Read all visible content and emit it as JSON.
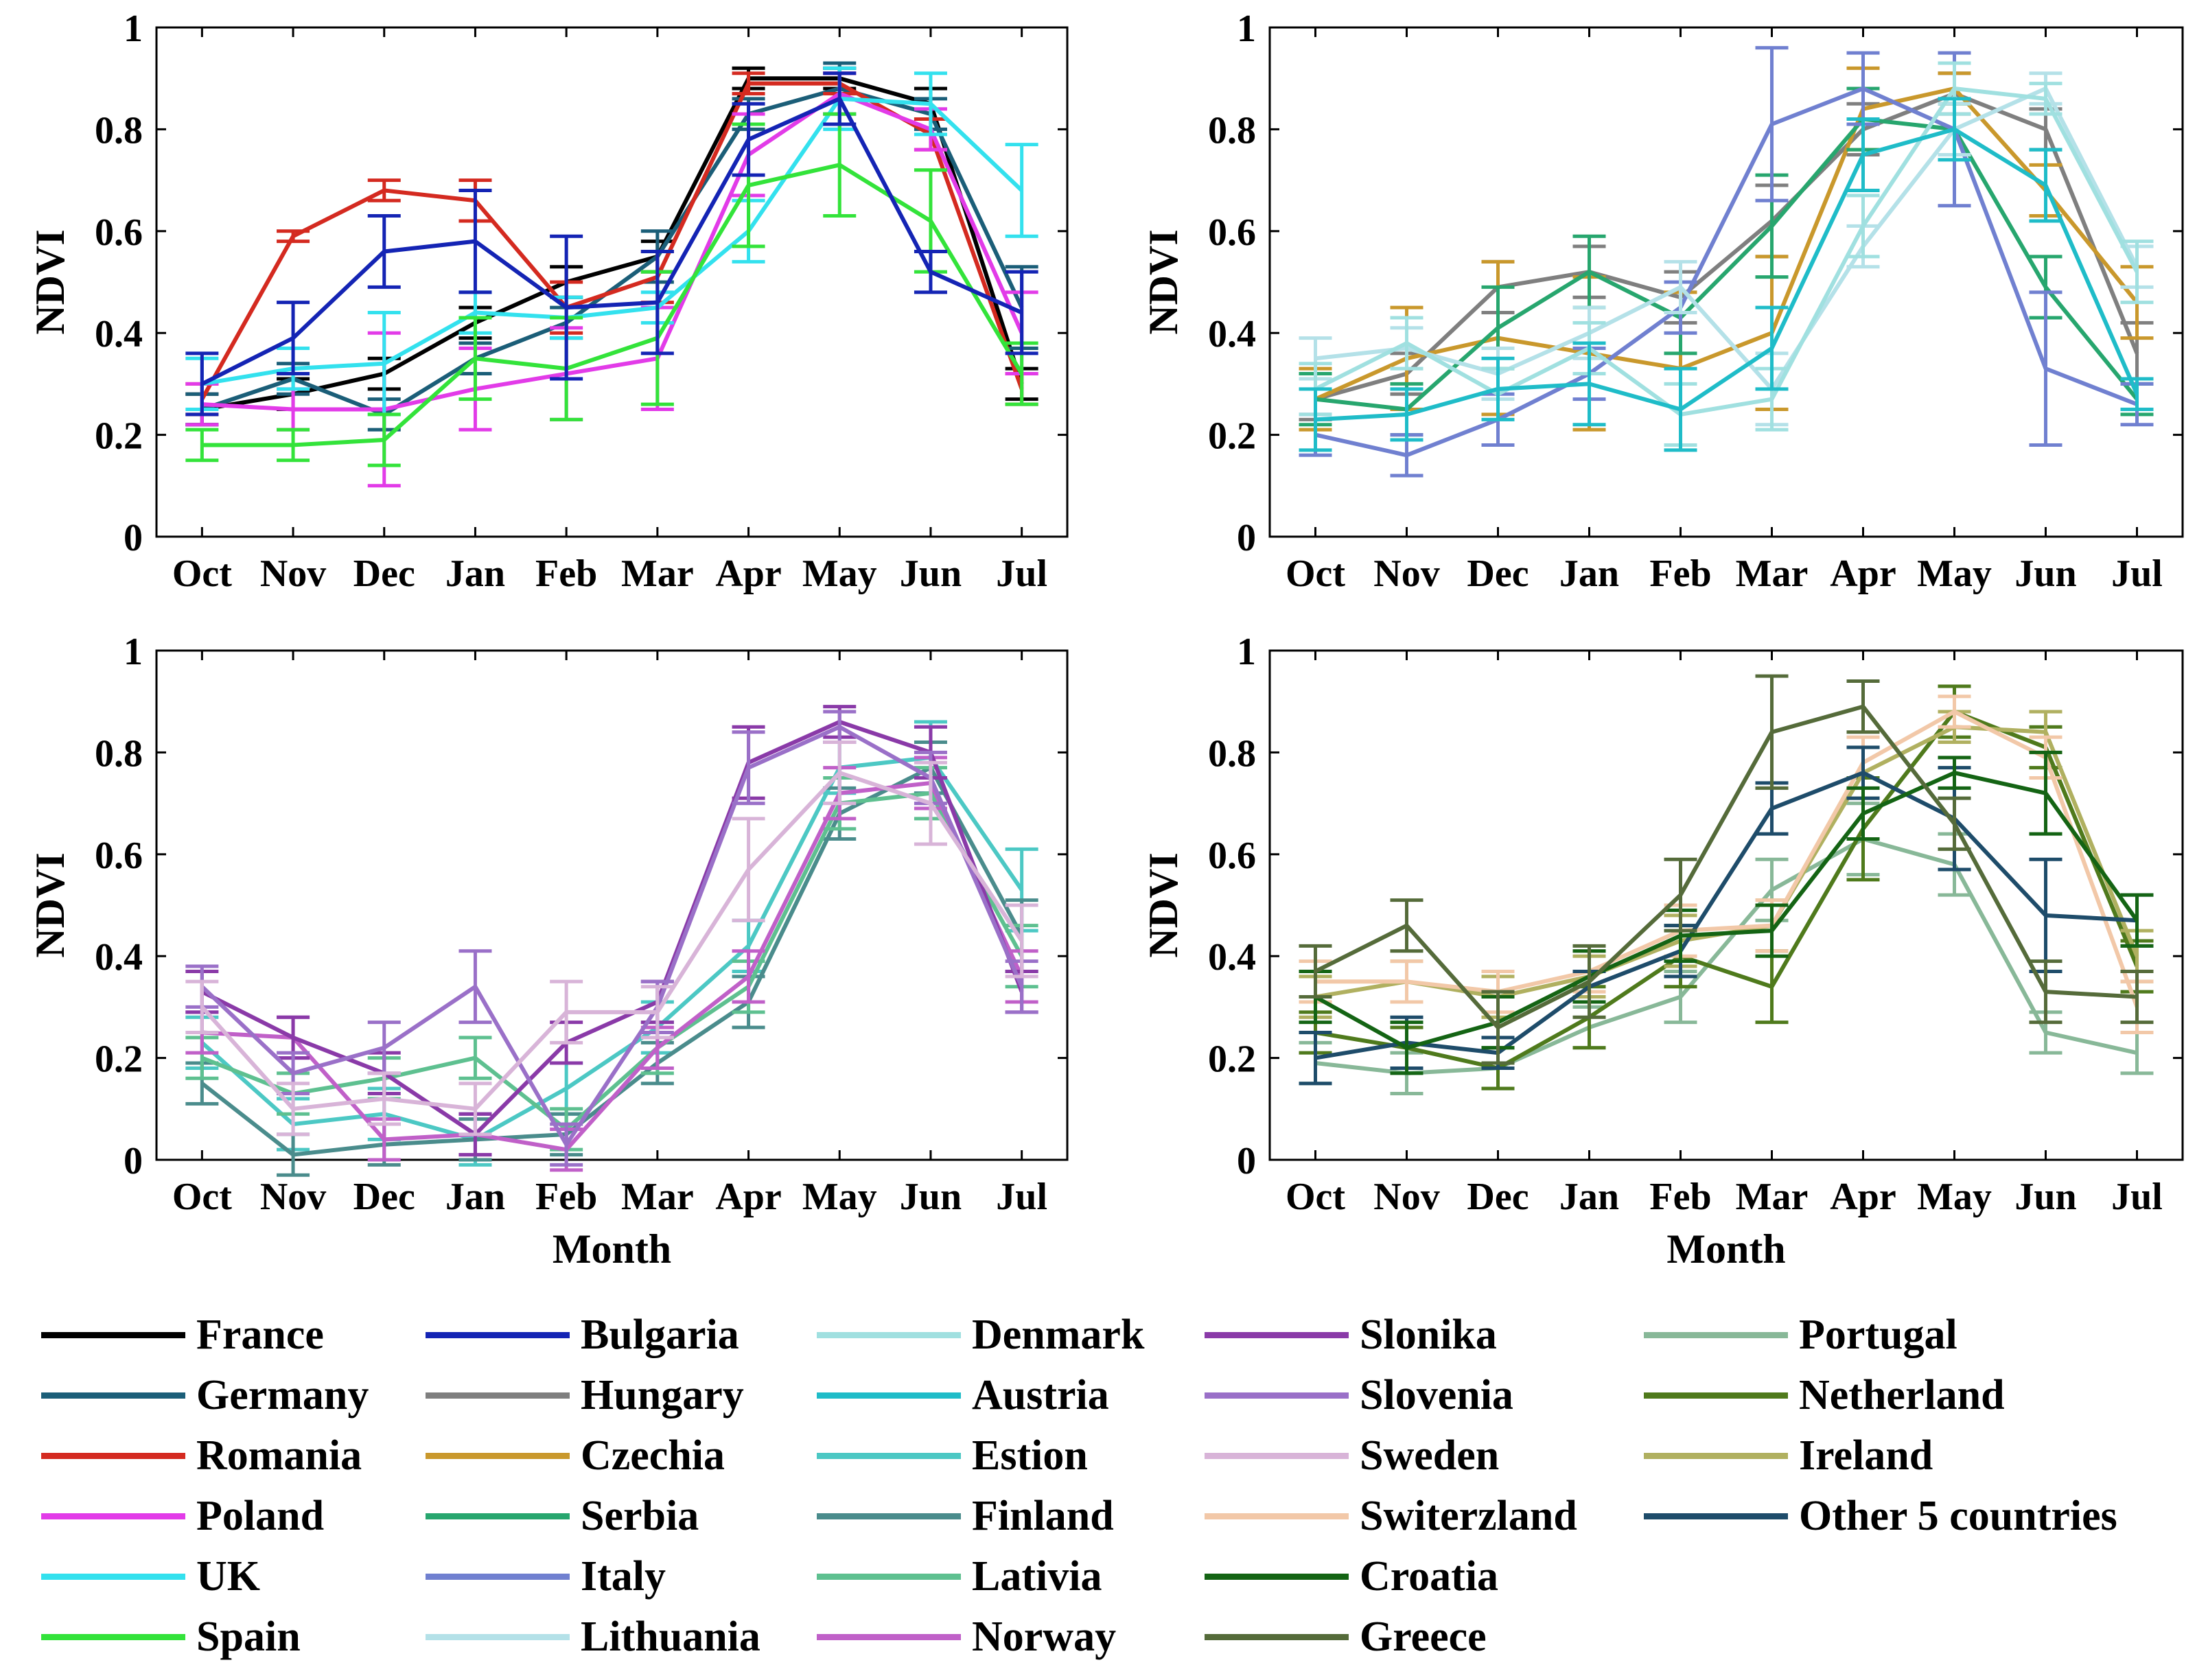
{
  "chart_data": [
    {
      "type": "line",
      "panel": "top-left",
      "categories": [
        "Oct",
        "Nov",
        "Dec",
        "Jan",
        "Feb",
        "Mar",
        "Apr",
        "May",
        "Jun",
        "Jul"
      ],
      "ylabel": "NDVI",
      "xlabel": "",
      "ylim": [
        0,
        1
      ],
      "yticks": [
        "0",
        "0.2",
        "0.4",
        "0.6",
        "0.8",
        "1"
      ],
      "error_bars": true,
      "series": [
        {
          "name": "France",
          "color": "#000000",
          "values": [
            0.25,
            0.28,
            0.32,
            0.42,
            0.5,
            0.55,
            0.9,
            0.9,
            0.85,
            0.3
          ],
          "err": [
            0.03,
            0.03,
            0.03,
            0.03,
            0.03,
            0.03,
            0.02,
            0.02,
            0.03,
            0.03
          ]
        },
        {
          "name": "Germany",
          "color": "#1b5e78",
          "values": [
            0.25,
            0.31,
            0.24,
            0.35,
            0.42,
            0.55,
            0.83,
            0.88,
            0.83,
            0.45
          ],
          "err": [
            0.03,
            0.03,
            0.03,
            0.03,
            0.03,
            0.05,
            0.03,
            0.05,
            0.03,
            0.08
          ]
        },
        {
          "name": "Romania",
          "color": "#d42a20",
          "values": [
            0.27,
            0.59,
            0.68,
            0.66,
            0.45,
            0.51,
            0.89,
            0.89,
            0.79,
            0.29
          ],
          "err": [
            0.03,
            0.01,
            0.02,
            0.04,
            0.05,
            0.05,
            0.02,
            0.02,
            0.03,
            0.03
          ]
        },
        {
          "name": "Poland",
          "color": "#e23be8",
          "values": [
            0.26,
            0.25,
            0.25,
            0.29,
            0.32,
            0.35,
            0.75,
            0.87,
            0.8,
            0.4
          ],
          "err": [
            0.04,
            0.04,
            0.15,
            0.08,
            0.09,
            0.1,
            0.08,
            0.04,
            0.04,
            0.08
          ]
        },
        {
          "name": "UK",
          "color": "#33e1ee",
          "values": [
            0.3,
            0.33,
            0.34,
            0.44,
            0.43,
            0.45,
            0.6,
            0.86,
            0.85,
            0.68
          ],
          "err": [
            0.05,
            0.04,
            0.1,
            0.04,
            0.04,
            0.03,
            0.06,
            0.06,
            0.06,
            0.09
          ]
        },
        {
          "name": "Spain",
          "color": "#33e33a",
          "values": [
            0.18,
            0.18,
            0.19,
            0.35,
            0.33,
            0.39,
            0.69,
            0.73,
            0.62,
            0.32
          ],
          "err": [
            0.03,
            0.03,
            0.05,
            0.08,
            0.1,
            0.13,
            0.12,
            0.1,
            0.1,
            0.06
          ]
        },
        {
          "name": "Bulgaria",
          "color": "#1424b4",
          "values": [
            0.3,
            0.39,
            0.56,
            0.58,
            0.45,
            0.46,
            0.78,
            0.86,
            0.52,
            0.44
          ],
          "err": [
            0.06,
            0.07,
            0.07,
            0.1,
            0.14,
            0.1,
            0.07,
            0.05,
            0.04,
            0.08
          ]
        }
      ]
    },
    {
      "type": "line",
      "panel": "top-right",
      "categories": [
        "Oct",
        "Nov",
        "Dec",
        "Jan",
        "Feb",
        "Mar",
        "Apr",
        "May",
        "Jun",
        "Jul"
      ],
      "ylabel": "NDVI",
      "xlabel": "",
      "ylim": [
        0,
        1
      ],
      "yticks": [
        "0",
        "0.2",
        "0.4",
        "0.6",
        "0.8",
        "1"
      ],
      "error_bars": true,
      "series": [
        {
          "name": "Hungary",
          "color": "#7f7f7f",
          "values": [
            0.27,
            0.32,
            0.49,
            0.52,
            0.47,
            0.62,
            0.8,
            0.87,
            0.8,
            0.36
          ],
          "err": [
            0.04,
            0.04,
            0.05,
            0.05,
            0.05,
            0.07,
            0.05,
            0.04,
            0.04,
            0.06
          ]
        },
        {
          "name": "Czechia",
          "color": "#c9982c",
          "values": [
            0.27,
            0.35,
            0.39,
            0.36,
            0.33,
            0.4,
            0.84,
            0.88,
            0.68,
            0.46
          ],
          "err": [
            0.06,
            0.1,
            0.15,
            0.15,
            0.15,
            0.15,
            0.08,
            0.03,
            0.05,
            0.07
          ]
        },
        {
          "name": "Serbia",
          "color": "#27a66e",
          "values": [
            0.27,
            0.25,
            0.41,
            0.52,
            0.43,
            0.61,
            0.82,
            0.8,
            0.49,
            0.27
          ],
          "err": [
            0.05,
            0.05,
            0.08,
            0.07,
            0.07,
            0.1,
            0.06,
            0.05,
            0.06,
            0.03
          ]
        },
        {
          "name": "Italy",
          "color": "#7080d0",
          "values": [
            0.2,
            0.16,
            0.23,
            0.32,
            0.45,
            0.81,
            0.88,
            0.8,
            0.33,
            0.26
          ],
          "err": [
            0.04,
            0.04,
            0.05,
            0.05,
            0.05,
            0.15,
            0.07,
            0.15,
            0.15,
            0.04
          ]
        },
        {
          "name": "Lithuania",
          "color": "#b4e1e8",
          "values": [
            0.35,
            0.37,
            0.32,
            0.4,
            0.49,
            0.29,
            0.57,
            0.8,
            0.88,
            0.53
          ],
          "err": [
            0.04,
            0.04,
            0.05,
            0.05,
            0.05,
            0.07,
            0.04,
            0.05,
            0.03,
            0.04
          ]
        },
        {
          "name": "Denmark",
          "color": "#a0e0e0",
          "values": [
            0.29,
            0.38,
            0.28,
            0.37,
            0.24,
            0.27,
            0.61,
            0.88,
            0.86,
            0.52
          ],
          "err": [
            0.05,
            0.05,
            0.05,
            0.05,
            0.06,
            0.06,
            0.06,
            0.05,
            0.03,
            0.06
          ]
        },
        {
          "name": "Austria",
          "color": "#1fbcc8",
          "values": [
            0.23,
            0.24,
            0.29,
            0.3,
            0.25,
            0.37,
            0.75,
            0.8,
            0.69,
            0.28
          ],
          "err": [
            0.06,
            0.05,
            0.06,
            0.08,
            0.08,
            0.08,
            0.07,
            0.06,
            0.07,
            0.03
          ]
        }
      ]
    },
    {
      "type": "line",
      "panel": "bottom-left",
      "categories": [
        "Oct",
        "Nov",
        "Dec",
        "Jan",
        "Feb",
        "Mar",
        "Apr",
        "May",
        "Jun",
        "Jul"
      ],
      "ylabel": "NDVI",
      "xlabel": "Month",
      "ylim": [
        0,
        1
      ],
      "yticks": [
        "0",
        "0.2",
        "0.4",
        "0.6",
        "0.8",
        "1"
      ],
      "error_bars": true,
      "series": [
        {
          "name": "Estion",
          "color": "#4cc8c4",
          "values": [
            0.23,
            0.07,
            0.09,
            0.04,
            0.14,
            0.26,
            0.42,
            0.77,
            0.79,
            0.53
          ],
          "err": [
            0.05,
            0.05,
            0.05,
            0.05,
            0.05,
            0.05,
            0.05,
            0.05,
            0.07,
            0.08
          ]
        },
        {
          "name": "Finland",
          "color": "#4a8c8c",
          "values": [
            0.15,
            0.01,
            0.03,
            0.04,
            0.05,
            0.19,
            0.31,
            0.68,
            0.77,
            0.44
          ],
          "err": [
            0.04,
            0.04,
            0.04,
            0.04,
            0.04,
            0.04,
            0.05,
            0.05,
            0.05,
            0.07
          ]
        },
        {
          "name": "Lativia",
          "color": "#5ec090",
          "values": [
            0.2,
            0.13,
            0.16,
            0.2,
            0.06,
            0.22,
            0.34,
            0.7,
            0.72,
            0.4
          ],
          "err": [
            0.04,
            0.04,
            0.04,
            0.04,
            0.04,
            0.05,
            0.05,
            0.05,
            0.05,
            0.06
          ]
        },
        {
          "name": "Norway",
          "color": "#c060c8",
          "values": [
            0.25,
            0.24,
            0.04,
            0.05,
            0.02,
            0.22,
            0.36,
            0.72,
            0.74,
            0.36
          ],
          "err": [
            0.04,
            0.04,
            0.04,
            0.04,
            0.04,
            0.04,
            0.05,
            0.05,
            0.05,
            0.05
          ]
        },
        {
          "name": "Slonika",
          "color": "#8a3aa8",
          "values": [
            0.33,
            0.24,
            0.17,
            0.05,
            0.23,
            0.31,
            0.78,
            0.86,
            0.8,
            0.33
          ],
          "err": [
            0.04,
            0.04,
            0.04,
            0.04,
            0.04,
            0.04,
            0.07,
            0.03,
            0.05,
            0.04
          ]
        },
        {
          "name": "Slovenia",
          "color": "#9a70c8",
          "values": [
            0.34,
            0.17,
            0.22,
            0.34,
            0.03,
            0.3,
            0.77,
            0.85,
            0.75,
            0.34
          ],
          "err": [
            0.04,
            0.04,
            0.05,
            0.07,
            0.04,
            0.05,
            0.07,
            0.03,
            0.05,
            0.05
          ]
        },
        {
          "name": "Sweden",
          "color": "#d8b4d8",
          "values": [
            0.3,
            0.1,
            0.12,
            0.1,
            0.29,
            0.29,
            0.57,
            0.76,
            0.7,
            0.43
          ],
          "err": [
            0.05,
            0.05,
            0.05,
            0.05,
            0.06,
            0.05,
            0.1,
            0.06,
            0.08,
            0.07
          ]
        }
      ]
    },
    {
      "type": "line",
      "panel": "bottom-right",
      "categories": [
        "Oct",
        "Nov",
        "Dec",
        "Jan",
        "Feb",
        "Mar",
        "Apr",
        "May",
        "Jun",
        "Jul"
      ],
      "ylabel": "NDVI",
      "xlabel": "Month",
      "ylim": [
        0,
        1
      ],
      "yticks": [
        "0",
        "0.2",
        "0.4",
        "0.6",
        "0.8",
        "1"
      ],
      "error_bars": true,
      "series": [
        {
          "name": "Portugal",
          "color": "#88b898",
          "values": [
            0.19,
            0.17,
            0.18,
            0.26,
            0.32,
            0.53,
            0.63,
            0.58,
            0.25,
            0.21
          ],
          "err": [
            0.04,
            0.04,
            0.04,
            0.04,
            0.05,
            0.06,
            0.07,
            0.06,
            0.04,
            0.04
          ]
        },
        {
          "name": "Netherland",
          "color": "#4f7a1c",
          "values": [
            0.25,
            0.22,
            0.18,
            0.28,
            0.4,
            0.34,
            0.65,
            0.88,
            0.81,
            0.38
          ],
          "err": [
            0.04,
            0.04,
            0.04,
            0.06,
            0.06,
            0.07,
            0.1,
            0.05,
            0.04,
            0.05
          ]
        },
        {
          "name": "Ireland",
          "color": "#b0b060",
          "values": [
            0.32,
            0.35,
            0.32,
            0.36,
            0.43,
            0.46,
            0.76,
            0.85,
            0.84,
            0.4
          ],
          "err": [
            0.04,
            0.04,
            0.04,
            0.04,
            0.05,
            0.05,
            0.05,
            0.03,
            0.04,
            0.05
          ]
        },
        {
          "name": "Switerzland",
          "color": "#f2c8a8",
          "values": [
            0.35,
            0.35,
            0.33,
            0.37,
            0.45,
            0.46,
            0.78,
            0.88,
            0.79,
            0.3
          ],
          "err": [
            0.04,
            0.04,
            0.04,
            0.04,
            0.05,
            0.05,
            0.05,
            0.03,
            0.04,
            0.05
          ]
        },
        {
          "name": "Other 5 countries",
          "color": "#1e4c6a",
          "values": [
            0.2,
            0.23,
            0.21,
            0.34,
            0.41,
            0.69,
            0.76,
            0.67,
            0.48,
            0.47
          ],
          "err": [
            0.05,
            0.05,
            0.03,
            0.03,
            0.05,
            0.05,
            0.05,
            0.1,
            0.11,
            0.05
          ]
        },
        {
          "name": "Croatia",
          "color": "#146414",
          "values": [
            0.32,
            0.22,
            0.27,
            0.36,
            0.44,
            0.45,
            0.68,
            0.76,
            0.72,
            0.47
          ],
          "err": [
            0.05,
            0.05,
            0.05,
            0.05,
            0.05,
            0.05,
            0.05,
            0.03,
            0.08,
            0.05
          ]
        },
        {
          "name": "Greece",
          "color": "#556b3a",
          "values": [
            0.37,
            0.46,
            0.26,
            0.35,
            0.52,
            0.84,
            0.89,
            0.66,
            0.33,
            0.32
          ],
          "err": [
            0.05,
            0.05,
            0.07,
            0.07,
            0.07,
            0.11,
            0.05,
            0.05,
            0.06,
            0.05
          ]
        }
      ]
    }
  ],
  "legend": {
    "columns": [
      [
        {
          "name": "France",
          "color": "#000000"
        },
        {
          "name": "Germany",
          "color": "#1b5e78"
        },
        {
          "name": "Romania",
          "color": "#d42a20"
        },
        {
          "name": "Poland",
          "color": "#e23be8"
        },
        {
          "name": "UK",
          "color": "#33e1ee"
        },
        {
          "name": "Spain",
          "color": "#33e33a"
        }
      ],
      [
        {
          "name": "Bulgaria",
          "color": "#1424b4"
        },
        {
          "name": "Hungary",
          "color": "#7f7f7f"
        },
        {
          "name": "Czechia",
          "color": "#c9982c"
        },
        {
          "name": "Serbia",
          "color": "#27a66e"
        },
        {
          "name": "Italy",
          "color": "#7080d0"
        },
        {
          "name": "Lithuania",
          "color": "#b4e1e8"
        }
      ],
      [
        {
          "name": "Denmark",
          "color": "#a0e0e0"
        },
        {
          "name": "Austria",
          "color": "#1fbcc8"
        },
        {
          "name": "Estion",
          "color": "#4cc8c4"
        },
        {
          "name": "Finland",
          "color": "#4a8c8c"
        },
        {
          "name": "Lativia",
          "color": "#5ec090"
        },
        {
          "name": "Norway",
          "color": "#c060c8"
        }
      ],
      [
        {
          "name": "Slonika",
          "color": "#8a3aa8"
        },
        {
          "name": "Slovenia",
          "color": "#9a70c8"
        },
        {
          "name": "Sweden",
          "color": "#d8b4d8"
        },
        {
          "name": "Switerzland",
          "color": "#f2c8a8"
        },
        {
          "name": "Croatia",
          "color": "#146414"
        },
        {
          "name": "Greece",
          "color": "#556b3a"
        }
      ],
      [
        {
          "name": "Portugal",
          "color": "#88b898"
        },
        {
          "name": "Netherland",
          "color": "#4f7a1c"
        },
        {
          "name": "Ireland",
          "color": "#b0b060"
        },
        {
          "name": "Other 5 countries",
          "color": "#1e4c6a"
        }
      ]
    ]
  }
}
